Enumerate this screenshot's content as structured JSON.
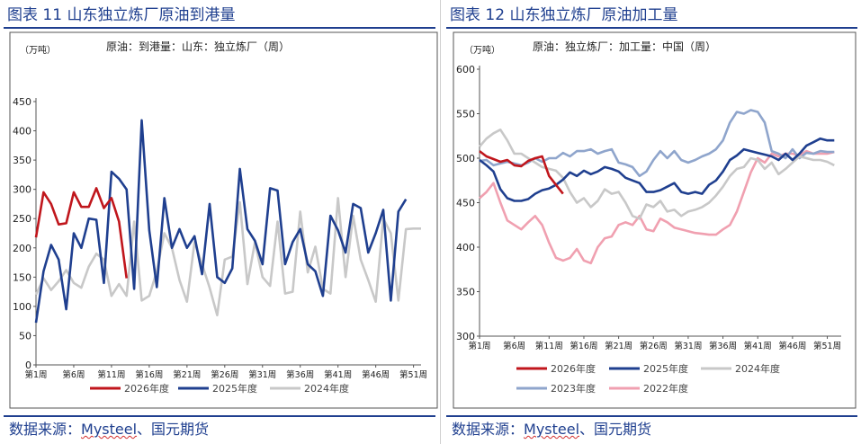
{
  "left": {
    "figure_title": "图表 11 山东独立炼厂原油到港量",
    "source_prefix": "数据来源：",
    "source_brand": "Mysteel",
    "source_suffix": "、国元期货",
    "chart_data": {
      "type": "line",
      "title": "原油：到港量：山东：独立炼厂（周）",
      "ylabel": "（万吨）",
      "ylim": [
        0,
        450
      ],
      "yticks": [
        0,
        50,
        100,
        150,
        200,
        250,
        300,
        350,
        400,
        450
      ],
      "xlim": [
        1,
        52
      ],
      "xticks": [
        1,
        6,
        11,
        16,
        21,
        26,
        31,
        36,
        41,
        46,
        51
      ],
      "xtick_labels": [
        "第1周",
        "第6周",
        "第11周",
        "第16周",
        "第21周",
        "第26周",
        "第31周",
        "第36周",
        "第41周",
        "第46周",
        "第51周"
      ],
      "series": [
        {
          "name": "2024年度",
          "color": "#c8c8c8",
          "values": [
            120,
            148,
            128,
            143,
            162,
            140,
            132,
            168,
            190,
            180,
            118,
            138,
            118,
            245,
            110,
            118,
            160,
            225,
            200,
            145,
            108,
            210,
            172,
            132,
            85,
            180,
            185,
            278,
            138,
            210,
            150,
            135,
            245,
            122,
            125,
            262,
            158,
            202,
            130,
            122,
            285,
            150,
            255,
            180,
            145,
            108,
            250,
            225,
            110,
            232,
            233,
            233
          ]
        },
        {
          "name": "2025年度",
          "color": "#1f3f8f",
          "values": [
            72,
            160,
            205,
            180,
            95,
            225,
            200,
            250,
            248,
            140,
            330,
            318,
            300,
            130,
            418,
            230,
            133,
            285,
            200,
            232,
            200,
            220,
            155,
            275,
            150,
            140,
            165,
            335,
            232,
            212,
            172,
            302,
            298,
            172,
            210,
            232,
            172,
            160,
            118,
            255,
            230,
            192,
            275,
            268,
            192,
            225,
            265,
            110,
            262,
            283
          ]
        },
        {
          "name": "2026年度",
          "color": "#c0161c",
          "values": [
            218,
            295,
            275,
            240,
            242,
            295,
            270,
            270,
            302,
            268,
            285,
            245,
            148
          ]
        }
      ]
    }
  },
  "right": {
    "figure_title": "图表 12 山东独立炼厂原油加工量",
    "source_prefix": "数据来源：",
    "source_brand": "Mysteel",
    "source_suffix": "、国元期货",
    "chart_data": {
      "type": "line",
      "title": "原油：独立炼厂：加工量：中国（周）",
      "ylabel": "（万吨）",
      "ylim": [
        300,
        600
      ],
      "yticks": [
        300,
        350,
        400,
        450,
        500,
        550,
        600
      ],
      "xlim": [
        1,
        53
      ],
      "xticks": [
        1,
        6,
        11,
        16,
        21,
        26,
        31,
        36,
        41,
        46,
        51
      ],
      "xtick_labels": [
        "第1周",
        "第6周",
        "第11周",
        "第16周",
        "第21周",
        "第26周",
        "第31周",
        "第36周",
        "第41周",
        "第46周",
        "第51周"
      ],
      "legend_rows": [
        [
          "2026年度",
          "2025年度",
          "2024年度"
        ],
        [
          "2023年度",
          "2022年度"
        ]
      ],
      "series": [
        {
          "name": "2022年度",
          "color": "#f0a0b0",
          "values": [
            455,
            462,
            472,
            450,
            430,
            425,
            420,
            428,
            435,
            425,
            405,
            388,
            385,
            388,
            398,
            385,
            382,
            400,
            410,
            412,
            425,
            428,
            425,
            435,
            420,
            418,
            432,
            428,
            422,
            420,
            418,
            416,
            415,
            414,
            414,
            420,
            425,
            440,
            462,
            484,
            500,
            495,
            505,
            502,
            505,
            505,
            503,
            508,
            505,
            505,
            505,
            507
          ]
        },
        {
          "name": "2023年度",
          "color": "#8fa5cc",
          "values": [
            497,
            498,
            492,
            494,
            496,
            494,
            492,
            495,
            500,
            496,
            500,
            500,
            506,
            502,
            508,
            508,
            510,
            505,
            508,
            510,
            495,
            493,
            490,
            480,
            485,
            498,
            508,
            500,
            508,
            498,
            495,
            498,
            502,
            505,
            510,
            520,
            540,
            552,
            550,
            554,
            552,
            540,
            508,
            505,
            500,
            510,
            500,
            506,
            505,
            508,
            507,
            507
          ]
        },
        {
          "name": "2024年度",
          "color": "#c8c8c8",
          "values": [
            513,
            522,
            528,
            532,
            520,
            505,
            505,
            500,
            495,
            490,
            488,
            486,
            478,
            462,
            450,
            455,
            445,
            452,
            465,
            460,
            462,
            450,
            435,
            432,
            448,
            445,
            452,
            440,
            442,
            435,
            440,
            442,
            445,
            450,
            458,
            468,
            480,
            488,
            490,
            500,
            498,
            488,
            495,
            482,
            488,
            495,
            502,
            500,
            498,
            498,
            496,
            492
          ]
        },
        {
          "name": "2025年度",
          "color": "#1f3f8f",
          "values": [
            498,
            492,
            485,
            465,
            455,
            452,
            452,
            454,
            460,
            464,
            466,
            470,
            476,
            484,
            480,
            486,
            482,
            485,
            490,
            488,
            485,
            478,
            475,
            472,
            462,
            462,
            464,
            468,
            472,
            462,
            460,
            462,
            460,
            470,
            475,
            485,
            498,
            503,
            510,
            508,
            506,
            504,
            502,
            498,
            505,
            498,
            505,
            514,
            518,
            522,
            520,
            520
          ]
        },
        {
          "name": "2026年度",
          "color": "#c0161c",
          "values": [
            508,
            502,
            499,
            496,
            498,
            492,
            491,
            497,
            500,
            502,
            480,
            470,
            460
          ]
        }
      ]
    }
  }
}
